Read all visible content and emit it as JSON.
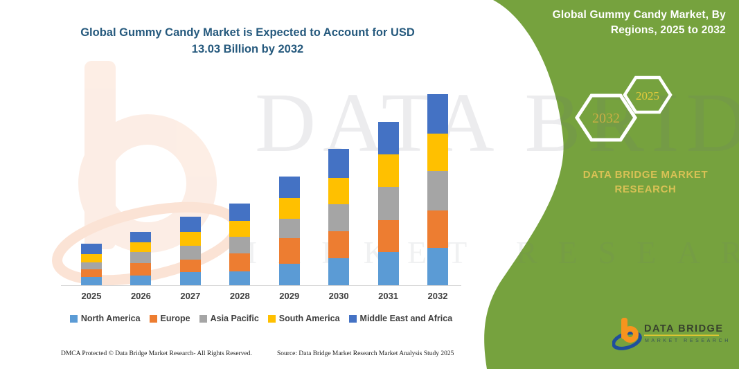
{
  "main_chart": {
    "title_line1": "Global Gummy Candy Market is Expected to Account for USD",
    "title_line2": "13.03 Billion by 2032"
  },
  "chart_data": {
    "type": "bar",
    "stacked": true,
    "title": "Global Gummy Candy Market is Expected to Account for USD 13.03 Billion by 2032",
    "unit": "USD Billion",
    "categories": [
      "2025",
      "2026",
      "2027",
      "2028",
      "2029",
      "2030",
      "2031",
      "2032"
    ],
    "series": [
      {
        "name": "North America",
        "color": "#5B9BD5",
        "values": [
          0.57,
          0.67,
          0.9,
          0.93,
          1.45,
          1.84,
          2.26,
          2.55
        ]
      },
      {
        "name": "Europe",
        "color": "#ED7D31",
        "values": [
          0.5,
          0.83,
          0.86,
          1.26,
          1.76,
          1.84,
          2.2,
          2.55
        ]
      },
      {
        "name": "Asia Pacific",
        "color": "#A5A5A5",
        "values": [
          0.5,
          0.79,
          0.94,
          1.1,
          1.31,
          1.85,
          2.25,
          2.67
        ]
      },
      {
        "name": "South America",
        "color": "#FFC000",
        "values": [
          0.57,
          0.63,
          0.94,
          1.1,
          1.45,
          1.81,
          2.23,
          2.59
        ]
      },
      {
        "name": "Middle East and Africa",
        "color": "#4472C4",
        "values": [
          0.69,
          0.74,
          1.02,
          1.18,
          1.43,
          1.97,
          2.22,
          2.67
        ]
      }
    ],
    "totals": [
      2.83,
      3.66,
      4.66,
      5.57,
      7.4,
      9.31,
      11.16,
      13.03
    ],
    "ylim": [
      0,
      13.5
    ],
    "gridlines": false,
    "legend_position": "bottom",
    "xlabel": "",
    "ylabel": ""
  },
  "side_panel": {
    "title_line1": "Global Gummy Candy Market, By",
    "title_line2": "Regions, 2025 to 2032",
    "hexagon_back_year": "2032",
    "hexagon_front_year": "2025",
    "caption_line1": "DATA BRIDGE MARKET",
    "caption_line2": "RESEARCH"
  },
  "watermark": {
    "brand": "DATA BRIDGE",
    "sub": "MARKET RESEARCH"
  },
  "logo": {
    "title": "DATA BRIDGE",
    "subtitle": "MARKET RESEARCH"
  },
  "footer": {
    "left": "DMCA Protected © Data Bridge Market Research-  All Rights Reserved.",
    "right": "Source: Data Bridge Market Research  Market Analysis Study 2025"
  },
  "colors": {
    "panel_green": "#76A23E",
    "title_blue": "#25597D",
    "caption_gold": "#D8C155",
    "hex_back_text": "#C9AE45",
    "hex_front_text": "#E5CB3C",
    "axis_line": "#D6D6D6",
    "label_gray": "#404040",
    "logo_orange": "#F7941E",
    "logo_blue": "#1F4E9C"
  }
}
